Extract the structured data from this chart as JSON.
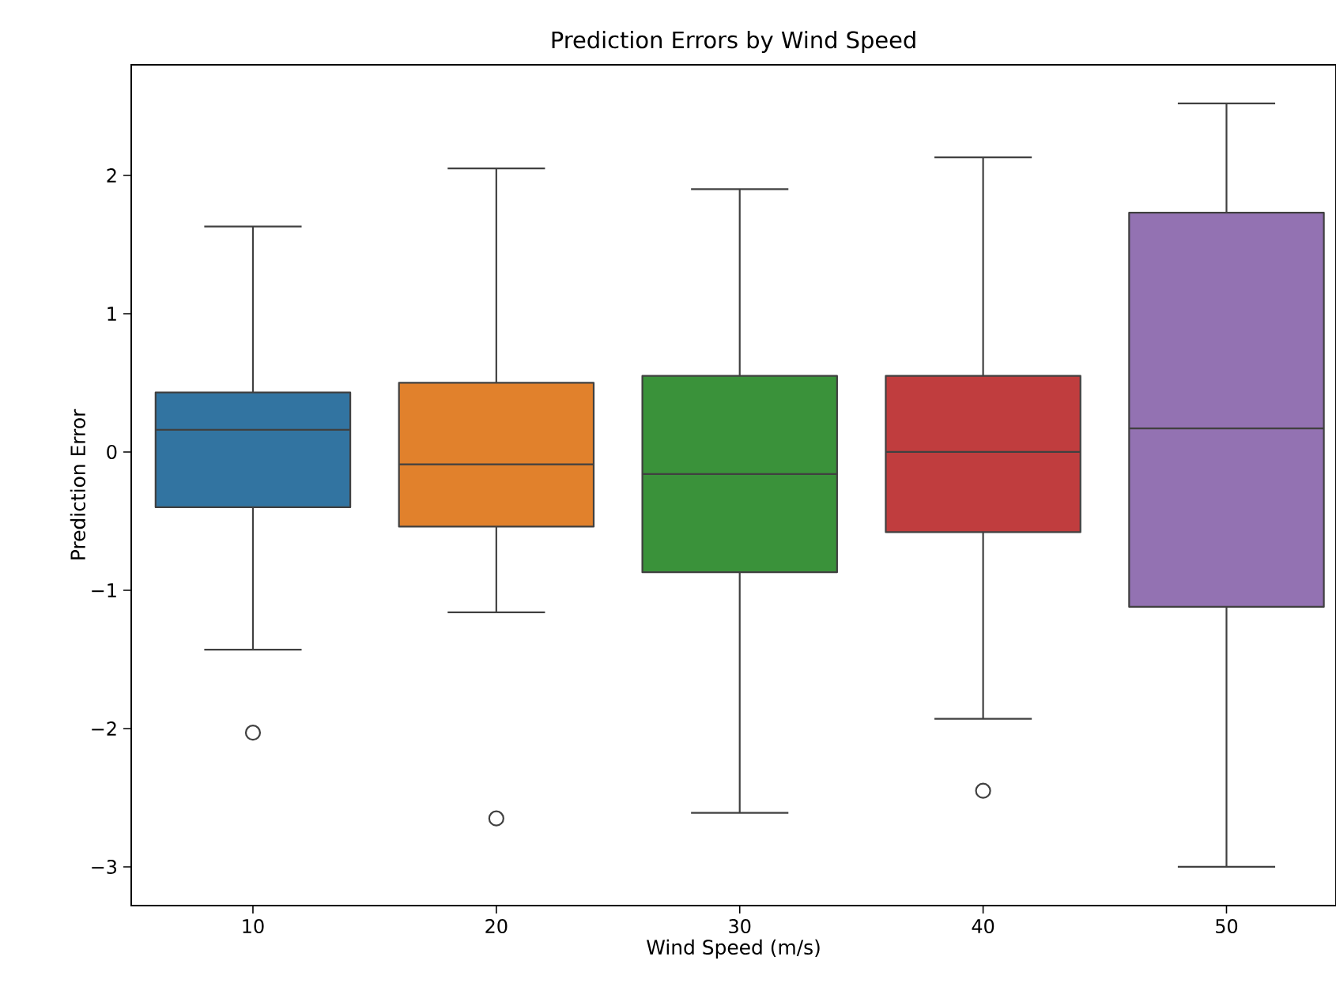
{
  "chart_data": {
    "type": "box",
    "title": "Prediction Errors by Wind Speed",
    "xlabel": "Wind Speed (m/s)",
    "ylabel": "Prediction Error",
    "categories": [
      "10",
      "20",
      "30",
      "40",
      "50"
    ],
    "colors": [
      "#3274a1",
      "#e1812c",
      "#3a923a",
      "#c03d3e",
      "#9372b2"
    ],
    "boxes": [
      {
        "low": -1.43,
        "q1": -0.4,
        "median": 0.16,
        "q3": 0.43,
        "high": 1.63,
        "outliers": [
          -2.03
        ]
      },
      {
        "low": -1.16,
        "q1": -0.54,
        "median": -0.09,
        "q3": 0.5,
        "high": 2.05,
        "outliers": [
          -2.65
        ]
      },
      {
        "low": -2.61,
        "q1": -0.87,
        "median": -0.16,
        "q3": 0.55,
        "high": 1.9
      },
      {
        "low": -1.93,
        "q1": -0.58,
        "median": 0.0,
        "q3": 0.55,
        "high": 2.13,
        "outliers": [
          -2.45
        ]
      },
      {
        "low": -3.0,
        "q1": -1.12,
        "median": 0.17,
        "q3": 1.73,
        "high": 2.52
      }
    ],
    "ylim": [
      -3.28,
      2.8
    ],
    "yticks": [
      {
        "value": -3,
        "label": "−3"
      },
      {
        "value": -2,
        "label": "−2"
      },
      {
        "value": -1,
        "label": "−1"
      },
      0,
      1,
      2
    ]
  }
}
